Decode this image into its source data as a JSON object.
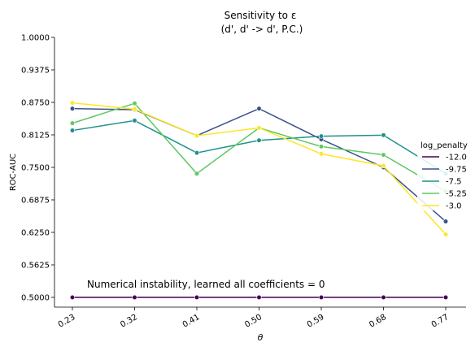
{
  "chart_data": {
    "type": "line",
    "title": "Sensitivity to ε",
    "subtitle": "(d', d' -> d', P.C.)",
    "xlabel": "θ",
    "ylabel": "ROC-AUC",
    "categories": [
      "0.23",
      "0.32",
      "0.41",
      "0.50",
      "0.59",
      "0.68",
      "0.77"
    ],
    "ylim": [
      0.48,
      1.0
    ],
    "yticks": [
      "0.5000",
      "0.5625",
      "0.6250",
      "0.6875",
      "0.7500",
      "0.8125",
      "0.8750",
      "0.9375",
      "1.0000"
    ],
    "ytick_values": [
      0.5,
      0.5625,
      0.625,
      0.6875,
      0.75,
      0.8125,
      0.875,
      0.9375,
      1.0
    ],
    "grid": false,
    "legend": {
      "title": "log_penalty",
      "placement": "right"
    },
    "annotation": "Numerical instability, learned all coefficients = 0",
    "series": [
      {
        "name": "-12.0",
        "color": "#440154",
        "values": [
          0.5,
          0.5,
          0.5,
          0.5,
          0.5,
          0.5,
          0.5
        ]
      },
      {
        "name": "-9.75",
        "color": "#3b528b",
        "values": [
          0.863,
          0.861,
          0.811,
          0.863,
          0.804,
          0.75,
          0.646
        ]
      },
      {
        "name": "-7.5",
        "color": "#21918c",
        "values": [
          0.821,
          0.84,
          0.778,
          0.802,
          0.81,
          0.812,
          0.738
        ]
      },
      {
        "name": "-5.25",
        "color": "#5ec962",
        "values": [
          0.835,
          0.873,
          0.738,
          0.826,
          0.79,
          0.774,
          0.704
        ]
      },
      {
        "name": "-3.0",
        "color": "#fde725",
        "values": [
          0.874,
          0.862,
          0.811,
          0.826,
          0.776,
          0.753,
          0.621
        ]
      }
    ]
  }
}
